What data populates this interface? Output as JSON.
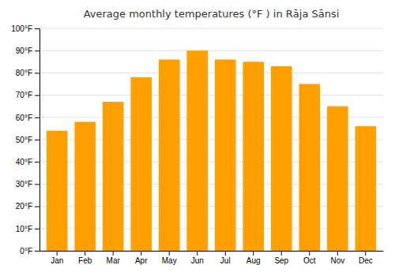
{
  "chart_data": {
    "type": "bar",
    "title": "Average monthly temperatures (°F ) in Rāja Sānsi",
    "categories": [
      "Jan",
      "Feb",
      "Mar",
      "Apr",
      "May",
      "Jun",
      "Jul",
      "Aug",
      "Sep",
      "Oct",
      "Nov",
      "Dec"
    ],
    "values": [
      54,
      58,
      67,
      78,
      86,
      90,
      86,
      85,
      83,
      75,
      65,
      56
    ],
    "color": "#ffa000",
    "ylim": [
      0,
      100
    ],
    "yticks": [
      {
        "value": 0,
        "label": "0°F"
      },
      {
        "value": 10,
        "label": "10°F"
      },
      {
        "value": 20,
        "label": "20°F"
      },
      {
        "value": 30,
        "label": "30°F"
      },
      {
        "value": 40,
        "label": "40°F"
      },
      {
        "value": 50,
        "label": "50°F"
      },
      {
        "value": 60,
        "label": "60°F"
      },
      {
        "value": 70,
        "label": "70°F"
      },
      {
        "value": 80,
        "label": "80°F"
      },
      {
        "value": 90,
        "label": "90°F"
      },
      {
        "value": 100,
        "label": "100°F"
      }
    ],
    "grid": true
  }
}
